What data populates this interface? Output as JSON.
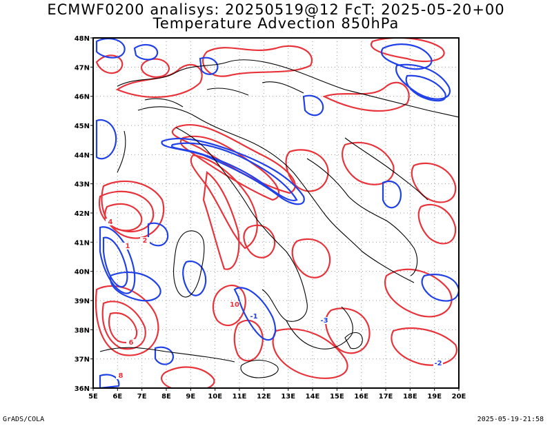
{
  "title_line1": "ECMWF0200 analisys: 20250519@12 FcT: 2025-05-20+00",
  "title_line2": "Temperature Advection 850hPa",
  "x_ticks": [
    "5E",
    "6E",
    "7E",
    "8E",
    "9E",
    "10E",
    "11E",
    "12E",
    "13E",
    "14E",
    "15E",
    "16E",
    "17E",
    "18E",
    "19E",
    "20E"
  ],
  "y_ticks": [
    "48N",
    "47N",
    "46N",
    "45N",
    "44N",
    "43N",
    "42N",
    "41N",
    "40N",
    "39N",
    "38N",
    "37N",
    "36N"
  ],
  "footer_left": "GrADS/COLA",
  "footer_right": "2025-05-19-21:58",
  "colors": {
    "positive_contour": "#e8333b",
    "negative_contour": "#2040e8",
    "coastline": "#000000",
    "grid": "#999999"
  },
  "contour_labels": [
    "1",
    "2",
    "4",
    "6",
    "8",
    "10",
    "-1",
    "-2",
    "-3"
  ]
}
